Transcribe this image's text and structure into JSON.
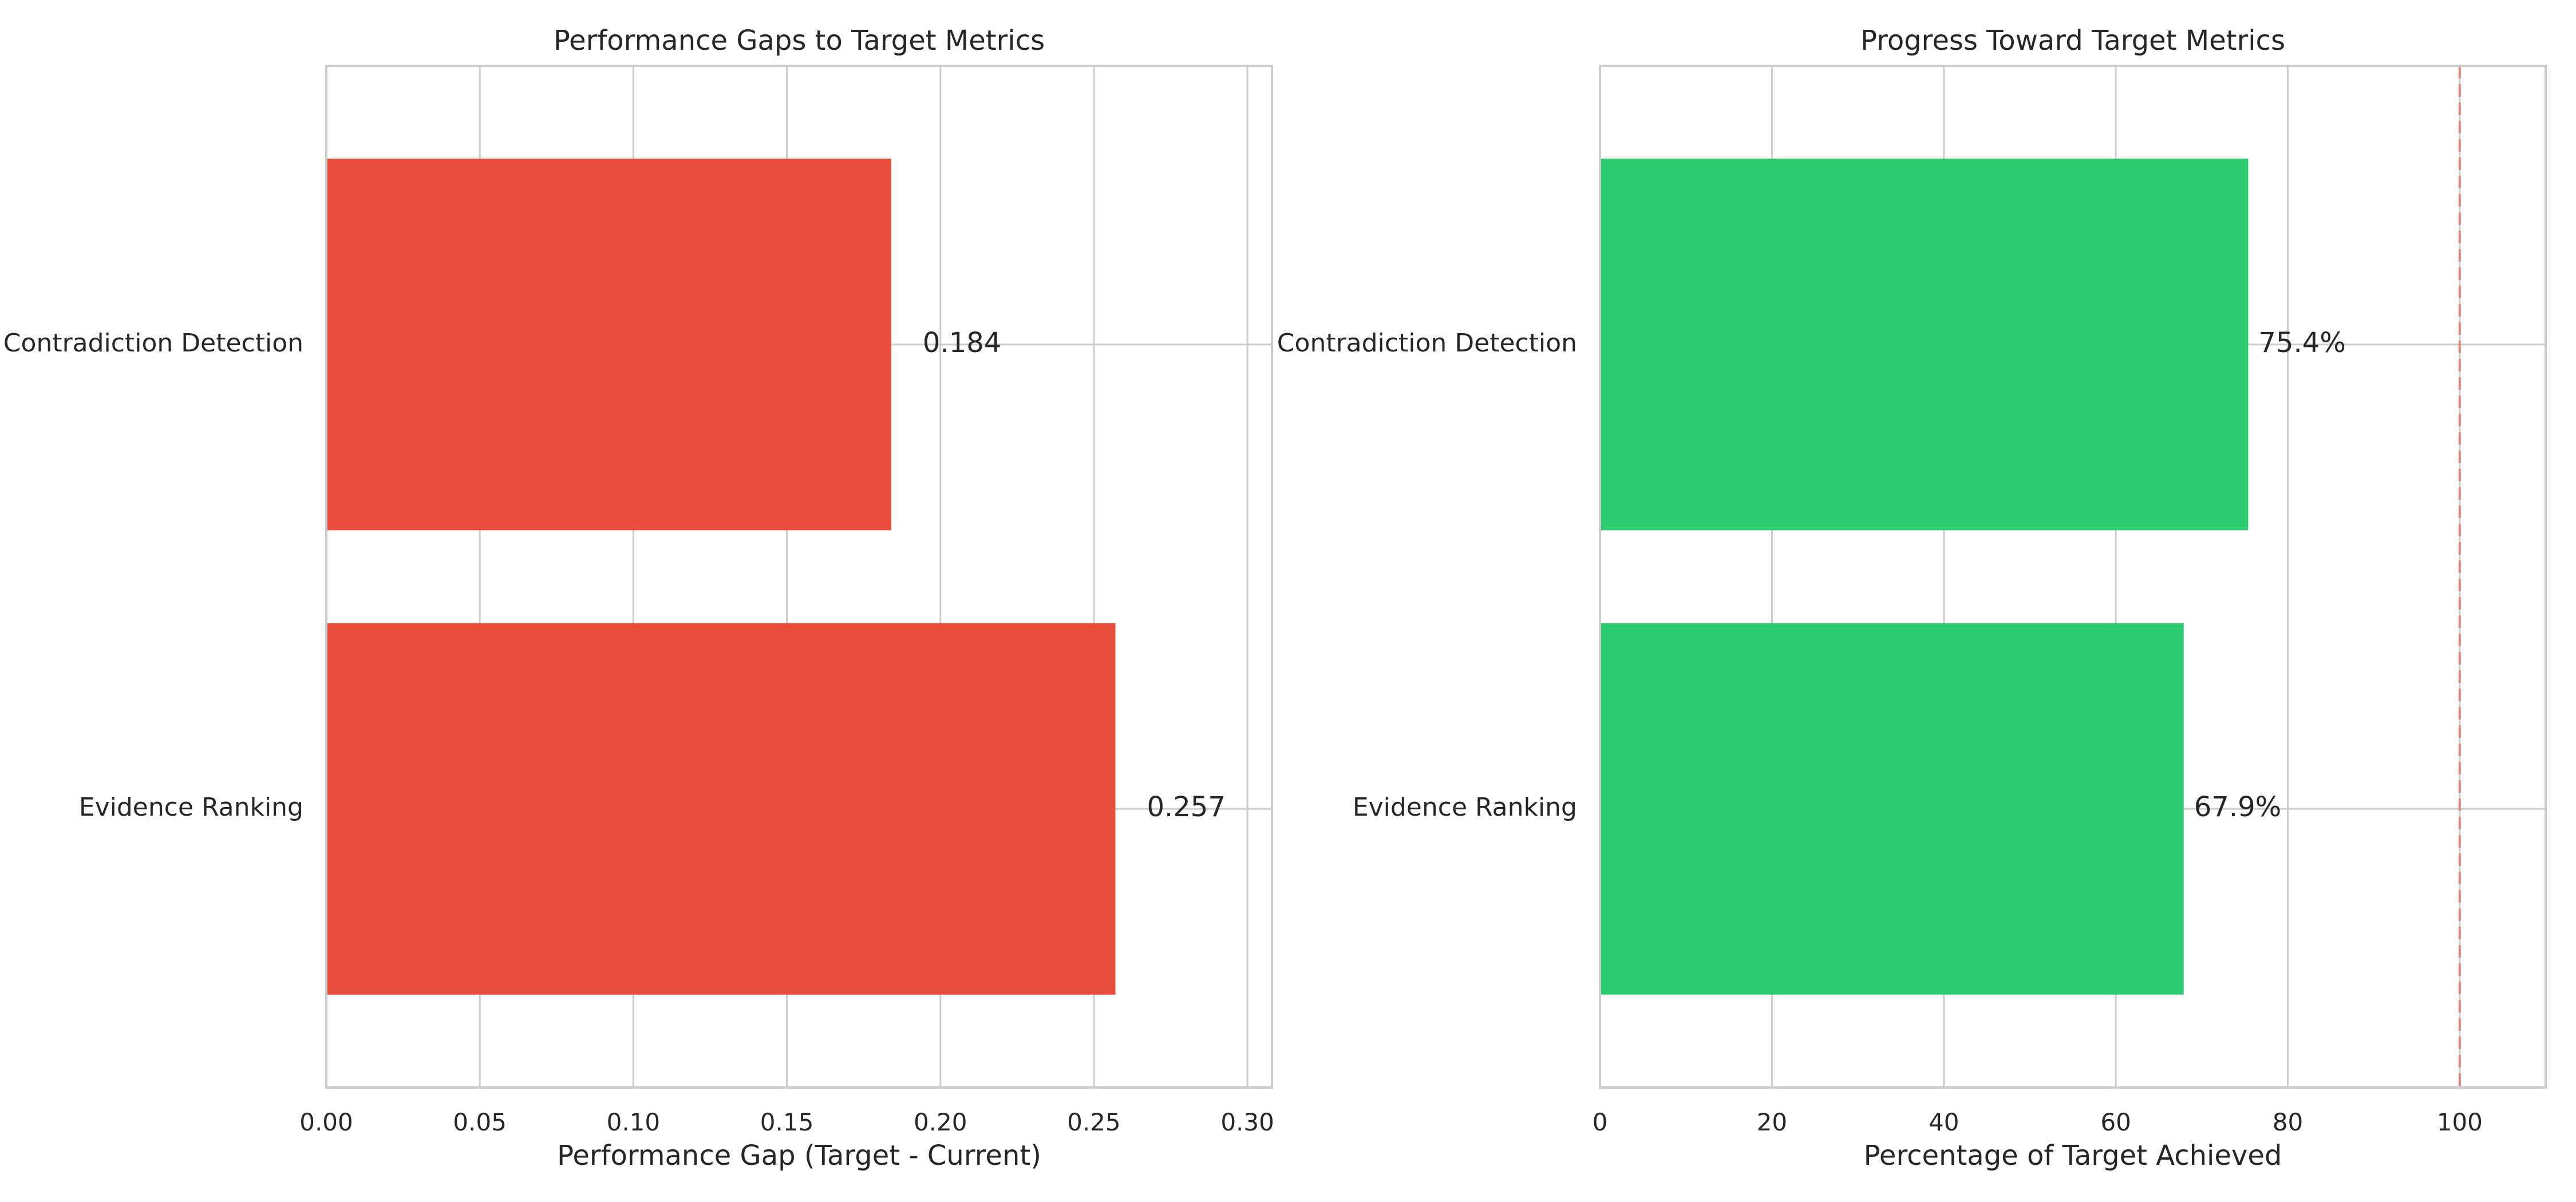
{
  "chart_data": [
    {
      "type": "bar",
      "orientation": "horizontal",
      "title": "Performance Gaps to Target Metrics",
      "xlabel": "Performance Gap (Target - Current)",
      "ylabel": "",
      "categories": [
        "Contradiction Detection",
        "Evidence Ranking"
      ],
      "values": [
        0.184,
        0.257
      ],
      "value_labels": [
        "0.184",
        "0.257"
      ],
      "xlim": [
        0,
        0.308
      ],
      "xticks": [
        0.0,
        0.05,
        0.1,
        0.15,
        0.2,
        0.25,
        0.3
      ],
      "xtick_labels": [
        "0.00",
        "0.05",
        "0.10",
        "0.15",
        "0.20",
        "0.25",
        "0.30"
      ],
      "bar_color": "#e74c3c",
      "grid": true
    },
    {
      "type": "bar",
      "orientation": "horizontal",
      "title": "Progress Toward Target Metrics",
      "xlabel": "Percentage of Target Achieved",
      "ylabel": "",
      "categories": [
        "Contradiction Detection",
        "Evidence Ranking"
      ],
      "values": [
        75.4,
        67.9
      ],
      "value_labels": [
        "75.4%",
        "67.9%"
      ],
      "xlim": [
        0,
        110
      ],
      "xticks": [
        0,
        20,
        40,
        60,
        80,
        100
      ],
      "xtick_labels": [
        "0",
        "20",
        "40",
        "60",
        "80",
        "100"
      ],
      "reference_line": 100,
      "reference_color": "#e74c3c",
      "bar_color": "#2ecc71",
      "grid": true
    }
  ]
}
